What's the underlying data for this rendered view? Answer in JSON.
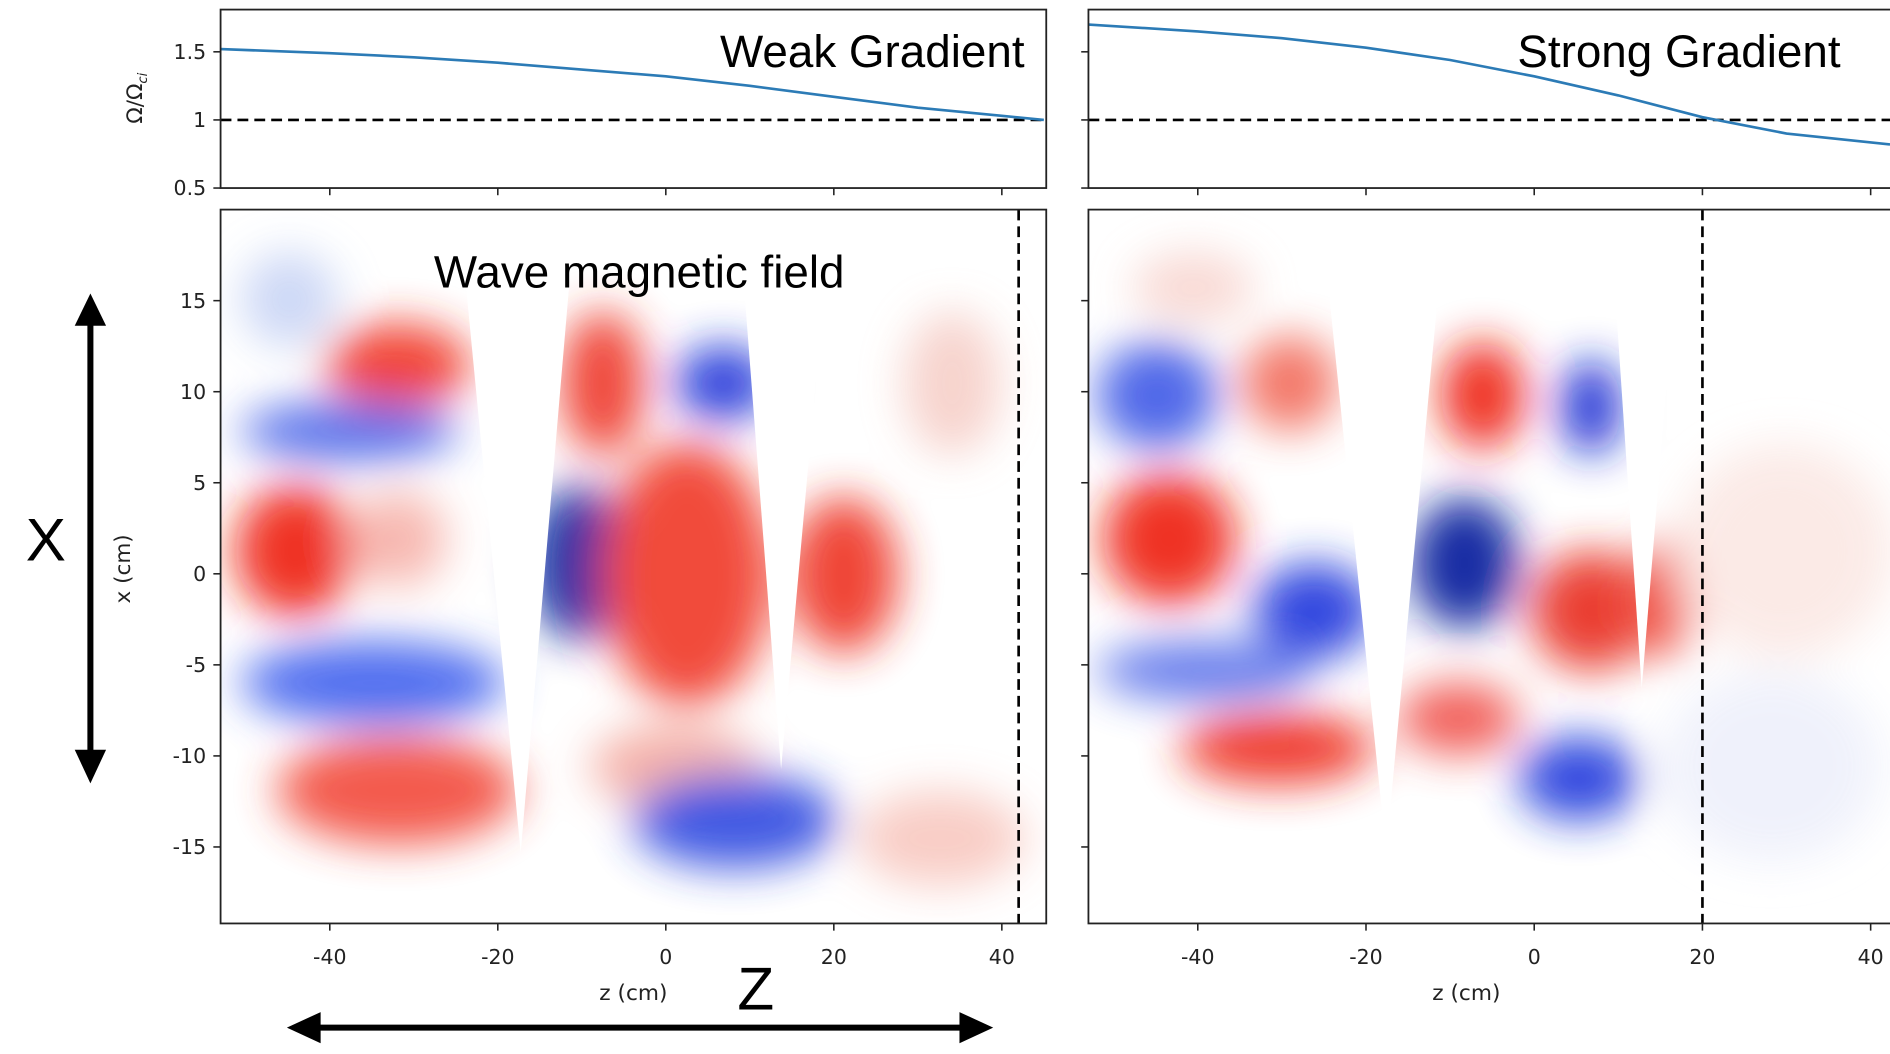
{
  "chart_data": [
    {
      "type": "line",
      "title": "Weak Gradient",
      "ylabel": {
        "main": "Ω/Ω",
        "sub": "ci"
      },
      "x": [
        -53,
        -40,
        -30,
        -20,
        -10,
        0,
        10,
        20,
        30,
        40,
        45
      ],
      "series": [
        {
          "color": "#2c7bb6",
          "values": [
            1.52,
            1.49,
            1.46,
            1.42,
            1.37,
            1.32,
            1.25,
            1.17,
            1.09,
            1.03,
            1.0
          ]
        }
      ],
      "hline": 1.0,
      "xlim": [
        -53,
        45
      ],
      "ylim": [
        0.5,
        1.81
      ],
      "yticks": [
        0.5,
        1.0,
        1.5
      ]
    },
    {
      "type": "heatmap",
      "annotation": "Wave magnetic field",
      "xlabel": "z (cm)",
      "ylabel": "x (cm)",
      "xlim": [
        -53,
        45
      ],
      "ylim": [
        -19.2,
        20
      ],
      "xticks": [
        -40,
        -20,
        0,
        20,
        40
      ],
      "yticks": [
        -15,
        -10,
        -5,
        0,
        5,
        10,
        15
      ],
      "vline": 42
    },
    {
      "type": "line",
      "title": "Strong Gradient",
      "x": [
        -53,
        -40,
        -30,
        -20,
        -10,
        0,
        10,
        20,
        30,
        42.3
      ],
      "series": [
        {
          "color": "#2c7bb6",
          "values": [
            1.7,
            1.65,
            1.6,
            1.53,
            1.44,
            1.32,
            1.18,
            1.02,
            0.9,
            0.82
          ]
        }
      ],
      "hline": 1.0,
      "xlim": [
        -53,
        42.3
      ],
      "ylim": [
        0.5,
        1.81
      ]
    },
    {
      "type": "heatmap",
      "xlabel": "z (cm)",
      "xlim": [
        -53,
        42.3
      ],
      "ylim": [
        -19.2,
        20
      ],
      "xticks": [
        -40,
        -20,
        0,
        20,
        40
      ],
      "vline": 20
    }
  ],
  "annotations": {
    "x_arrow": "X",
    "z_arrow": "Z"
  }
}
